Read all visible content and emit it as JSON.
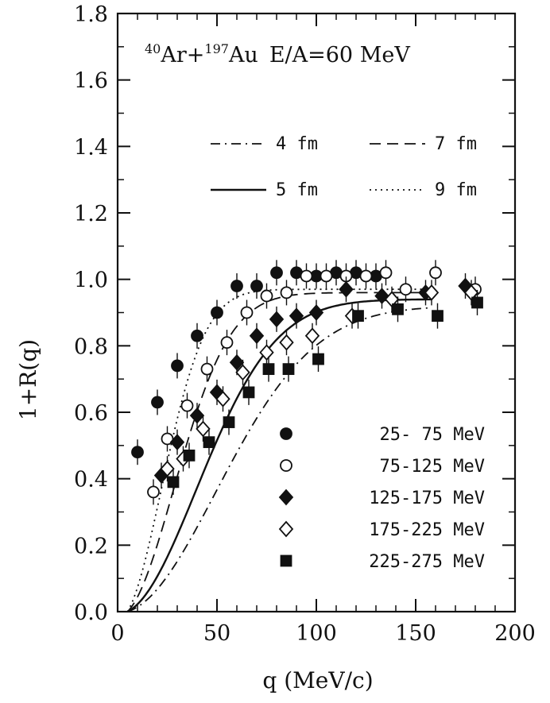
{
  "chart_data": {
    "type": "scatter",
    "title_parts": {
      "sup1": "40",
      "el1": "Ar+",
      "sup2": "197",
      "el2": "Au",
      "tail": "E/A=60 MeV"
    },
    "xlabel": "q (MeV/c)",
    "ylabel": "1+R(q)",
    "xlim": [
      0,
      200
    ],
    "ylim": [
      0.0,
      1.8
    ],
    "xticks": [
      "0",
      "50",
      "100",
      "150",
      "200"
    ],
    "yticks": [
      "0.0",
      "0.2",
      "0.4",
      "0.6",
      "0.8",
      "1.0",
      "1.2",
      "1.4",
      "1.6",
      "1.8"
    ],
    "grid": false,
    "curves": [
      {
        "name": "4 fm",
        "style": "dash-dot",
        "R": 4
      },
      {
        "name": "7 fm",
        "style": "dashed",
        "R": 7
      },
      {
        "name": "5 fm",
        "style": "solid",
        "R": 5
      },
      {
        "name": "9 fm",
        "style": "dotted",
        "R": 9
      }
    ],
    "series": [
      {
        "name": "25- 75 MeV",
        "marker": "filled-circle",
        "points": [
          [
            10,
            0.48
          ],
          [
            20,
            0.63
          ],
          [
            30,
            0.74
          ],
          [
            40,
            0.83
          ],
          [
            50,
            0.9
          ],
          [
            60,
            0.98
          ],
          [
            70,
            0.98
          ],
          [
            80,
            1.02
          ],
          [
            90,
            1.02
          ],
          [
            100,
            1.01
          ],
          [
            110,
            1.02
          ],
          [
            120,
            1.02
          ],
          [
            130,
            1.01
          ]
        ]
      },
      {
        "name": "75-125 MeV",
        "marker": "open-circle",
        "points": [
          [
            18,
            0.36
          ],
          [
            25,
            0.52
          ],
          [
            35,
            0.62
          ],
          [
            45,
            0.73
          ],
          [
            55,
            0.81
          ],
          [
            65,
            0.9
          ],
          [
            75,
            0.95
          ],
          [
            85,
            0.96
          ],
          [
            95,
            1.01
          ],
          [
            105,
            1.01
          ],
          [
            115,
            1.01
          ],
          [
            125,
            1.01
          ],
          [
            135,
            1.02
          ],
          [
            145,
            0.97
          ],
          [
            160,
            1.02
          ],
          [
            180,
            0.97
          ]
        ]
      },
      {
        "name": "125-175 MeV",
        "marker": "filled-diamond",
        "points": [
          [
            22,
            0.41
          ],
          [
            30,
            0.51
          ],
          [
            40,
            0.59
          ],
          [
            50,
            0.66
          ],
          [
            60,
            0.75
          ],
          [
            70,
            0.83
          ],
          [
            80,
            0.88
          ],
          [
            90,
            0.89
          ],
          [
            100,
            0.9
          ],
          [
            115,
            0.97
          ],
          [
            133,
            0.95
          ],
          [
            155,
            0.96
          ],
          [
            175,
            0.98
          ]
        ]
      },
      {
        "name": "175-225 MeV",
        "marker": "open-diamond",
        "points": [
          [
            25,
            0.43
          ],
          [
            33,
            0.46
          ],
          [
            43,
            0.55
          ],
          [
            53,
            0.64
          ],
          [
            63,
            0.72
          ],
          [
            75,
            0.78
          ],
          [
            85,
            0.81
          ],
          [
            98,
            0.83
          ],
          [
            118,
            0.89
          ],
          [
            138,
            0.94
          ],
          [
            158,
            0.96
          ],
          [
            178,
            0.96
          ]
        ]
      },
      {
        "name": "225-275 MeV",
        "marker": "filled-square",
        "points": [
          [
            28,
            0.39
          ],
          [
            36,
            0.47
          ],
          [
            46,
            0.51
          ],
          [
            56,
            0.57
          ],
          [
            66,
            0.66
          ],
          [
            76,
            0.73
          ],
          [
            86,
            0.73
          ],
          [
            101,
            0.76
          ],
          [
            121,
            0.89
          ],
          [
            141,
            0.91
          ],
          [
            161,
            0.89
          ],
          [
            181,
            0.93
          ]
        ]
      }
    ]
  }
}
